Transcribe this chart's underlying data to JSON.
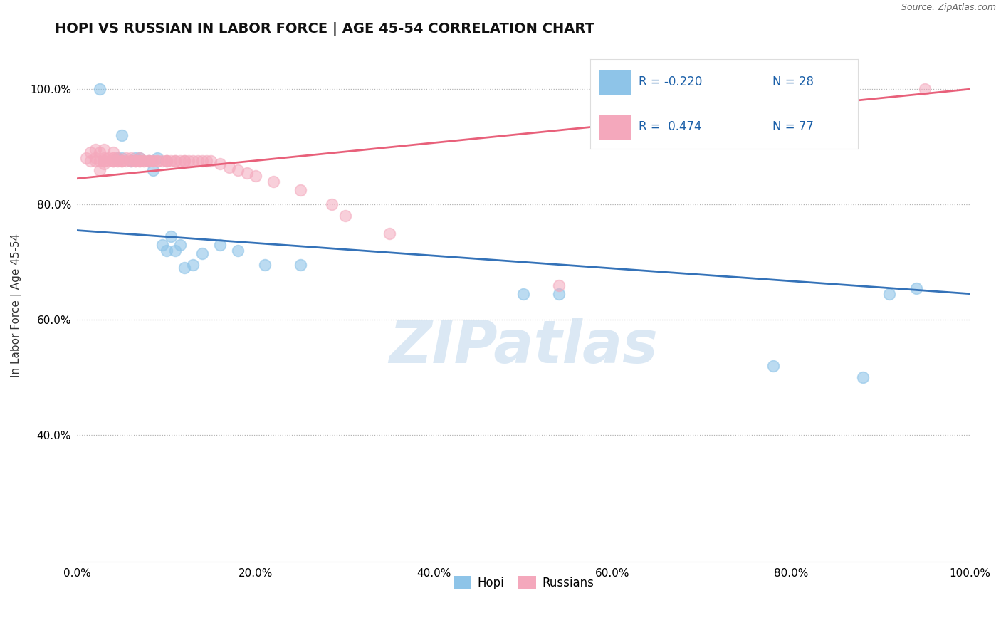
{
  "title": "HOPI VS RUSSIAN IN LABOR FORCE | AGE 45-54 CORRELATION CHART",
  "ylabel": "In Labor Force | Age 45-54",
  "source_text": "Source: ZipAtlas.com",
  "hopi_R": -0.22,
  "hopi_N": 28,
  "russian_R": 0.474,
  "russian_N": 77,
  "hopi_color": "#8ec4e8",
  "russian_color": "#f4a8bc",
  "hopi_line_color": "#3472b8",
  "russian_line_color": "#e8607a",
  "background_color": "#ffffff",
  "watermark_color": "#ccdff0",
  "xlim": [
    0.0,
    1.0
  ],
  "ylim": [
    0.18,
    1.07
  ],
  "hopi_x": [
    0.025,
    0.045,
    0.05,
    0.05,
    0.06,
    0.065,
    0.07,
    0.08,
    0.085,
    0.09,
    0.095,
    0.1,
    0.105,
    0.11,
    0.115,
    0.12,
    0.13,
    0.14,
    0.16,
    0.18,
    0.21,
    0.25,
    0.5,
    0.54,
    0.78,
    0.88,
    0.91,
    0.94
  ],
  "hopi_y": [
    1.0,
    0.88,
    0.88,
    0.92,
    0.875,
    0.88,
    0.88,
    0.875,
    0.86,
    0.88,
    0.73,
    0.72,
    0.745,
    0.72,
    0.73,
    0.69,
    0.695,
    0.715,
    0.73,
    0.72,
    0.695,
    0.695,
    0.645,
    0.645,
    0.52,
    0.5,
    0.645,
    0.655
  ],
  "russian_x": [
    0.01,
    0.015,
    0.015,
    0.02,
    0.02,
    0.02,
    0.025,
    0.025,
    0.025,
    0.03,
    0.03,
    0.03,
    0.03,
    0.03,
    0.035,
    0.035,
    0.04,
    0.04,
    0.04,
    0.04,
    0.04,
    0.04,
    0.045,
    0.045,
    0.045,
    0.05,
    0.05,
    0.05,
    0.055,
    0.055,
    0.06,
    0.06,
    0.06,
    0.065,
    0.065,
    0.065,
    0.07,
    0.07,
    0.07,
    0.07,
    0.075,
    0.075,
    0.08,
    0.08,
    0.08,
    0.085,
    0.085,
    0.09,
    0.09,
    0.095,
    0.1,
    0.1,
    0.1,
    0.105,
    0.11,
    0.11,
    0.115,
    0.12,
    0.12,
    0.125,
    0.13,
    0.135,
    0.14,
    0.145,
    0.15,
    0.16,
    0.17,
    0.18,
    0.19,
    0.2,
    0.22,
    0.25,
    0.285,
    0.3,
    0.35,
    0.54,
    0.95
  ],
  "russian_y": [
    0.88,
    0.875,
    0.89,
    0.875,
    0.88,
    0.895,
    0.875,
    0.86,
    0.89,
    0.87,
    0.875,
    0.875,
    0.88,
    0.895,
    0.88,
    0.875,
    0.875,
    0.88,
    0.875,
    0.875,
    0.88,
    0.89,
    0.875,
    0.875,
    0.88,
    0.875,
    0.875,
    0.875,
    0.875,
    0.88,
    0.875,
    0.875,
    0.88,
    0.875,
    0.875,
    0.875,
    0.875,
    0.875,
    0.875,
    0.88,
    0.875,
    0.875,
    0.875,
    0.875,
    0.875,
    0.875,
    0.875,
    0.875,
    0.875,
    0.875,
    0.875,
    0.875,
    0.875,
    0.875,
    0.875,
    0.875,
    0.875,
    0.875,
    0.875,
    0.875,
    0.875,
    0.875,
    0.875,
    0.875,
    0.875,
    0.87,
    0.865,
    0.86,
    0.855,
    0.85,
    0.84,
    0.825,
    0.8,
    0.78,
    0.75,
    0.66,
    1.0
  ],
  "hopi_trendline_x": [
    0.0,
    1.0
  ],
  "hopi_trendline_y": [
    0.755,
    0.645
  ],
  "russian_trendline_x": [
    0.0,
    1.0
  ],
  "russian_trendline_y": [
    0.845,
    1.0
  ]
}
